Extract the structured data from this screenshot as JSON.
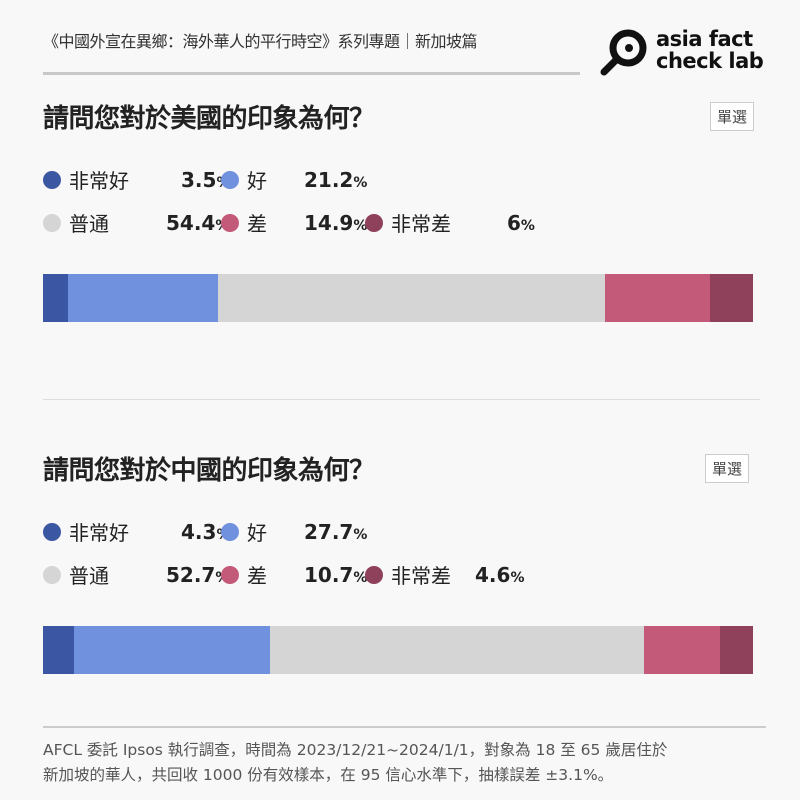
{
  "header": {
    "series_title": "《中國外宣在異鄉：海外華人的平行時空》系列專題｜新加坡篇",
    "logo_text": [
      "asia fact",
      "check lab"
    ]
  },
  "colors": {
    "very_good": "#3b57a4",
    "good": "#7091de",
    "neutral": "#d5d5d5",
    "bad": "#c45a79",
    "very_bad": "#8f405b"
  },
  "chart_data": [
    {
      "type": "bar",
      "stacked": true,
      "orientation": "horizontal",
      "title": "請問您對於美國的印象為何？",
      "badge": "單選",
      "categories": [
        "非常好",
        "好",
        "普通",
        "差",
        "非常差"
      ],
      "values": [
        3.5,
        21.2,
        54.4,
        14.9,
        6
      ],
      "value_labels": [
        "3.5",
        "21.2",
        "54.4",
        "14.9",
        "6"
      ],
      "unit": "%"
    },
    {
      "type": "bar",
      "stacked": true,
      "orientation": "horizontal",
      "title": "請問您對於中國的印象為何？",
      "badge": "單選",
      "categories": [
        "非常好",
        "好",
        "普通",
        "差",
        "非常差"
      ],
      "values": [
        4.3,
        27.7,
        52.7,
        10.7,
        4.6
      ],
      "value_labels": [
        "4.3",
        "27.7",
        "52.7",
        "10.7",
        "4.6"
      ],
      "unit": "%"
    }
  ],
  "footer": {
    "lines": [
      "AFCL 委託 Ipsos 執行調查，時間為 2023/12/21~2024/1/1，對象為 18 至 65 歲居住於",
      "新加坡的華人，共回收 1000 份有效樣本，在 95 信心水準下，抽樣誤差 ±3.1%。"
    ]
  }
}
